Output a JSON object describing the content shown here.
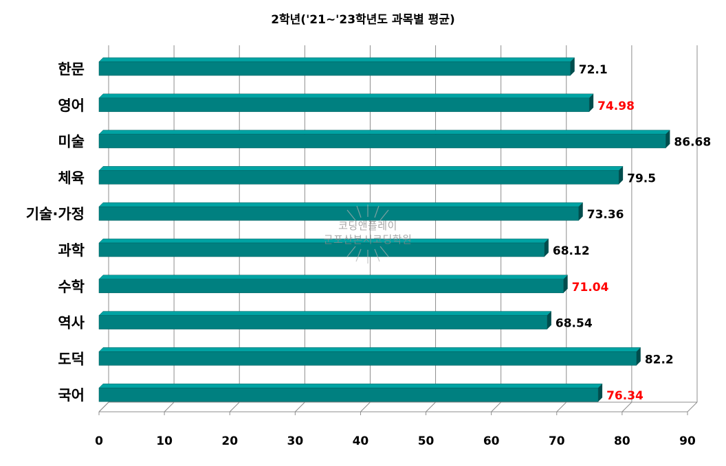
{
  "chart_data": {
    "type": "bar",
    "orientation": "horizontal",
    "title": "2학년('21~'23학년도 과목별 평균)",
    "categories": [
      "한문",
      "영어",
      "미술",
      "체육",
      "기술·가정",
      "과학",
      "수학",
      "역사",
      "도덕",
      "국어"
    ],
    "values": [
      72.1,
      74.98,
      86.68,
      79.5,
      73.36,
      68.12,
      71.04,
      68.54,
      82.2,
      76.34
    ],
    "value_labels": [
      "72.1",
      "74.98",
      "86.68",
      "79.5",
      "73.36",
      "68.12",
      "71.04",
      "68.54",
      "82.2",
      "76.34"
    ],
    "highlighted": [
      false,
      true,
      false,
      false,
      false,
      false,
      true,
      false,
      false,
      true
    ],
    "xlim": [
      0,
      90
    ],
    "xticks": [
      0,
      10,
      20,
      30,
      40,
      50,
      60,
      70,
      80,
      90
    ],
    "grid": "vertical",
    "legend": "none",
    "bar_color": "#008080",
    "bar_top_color": "#00a3a3",
    "bar_side_color": "#004d4d",
    "highlight_color": "#ff0000",
    "label_color": "#000000",
    "gridline_color": "#8c8c8c"
  },
  "watermark": {
    "line1": "코딩앤플레이",
    "line2": "군포산본시코딩학원"
  }
}
